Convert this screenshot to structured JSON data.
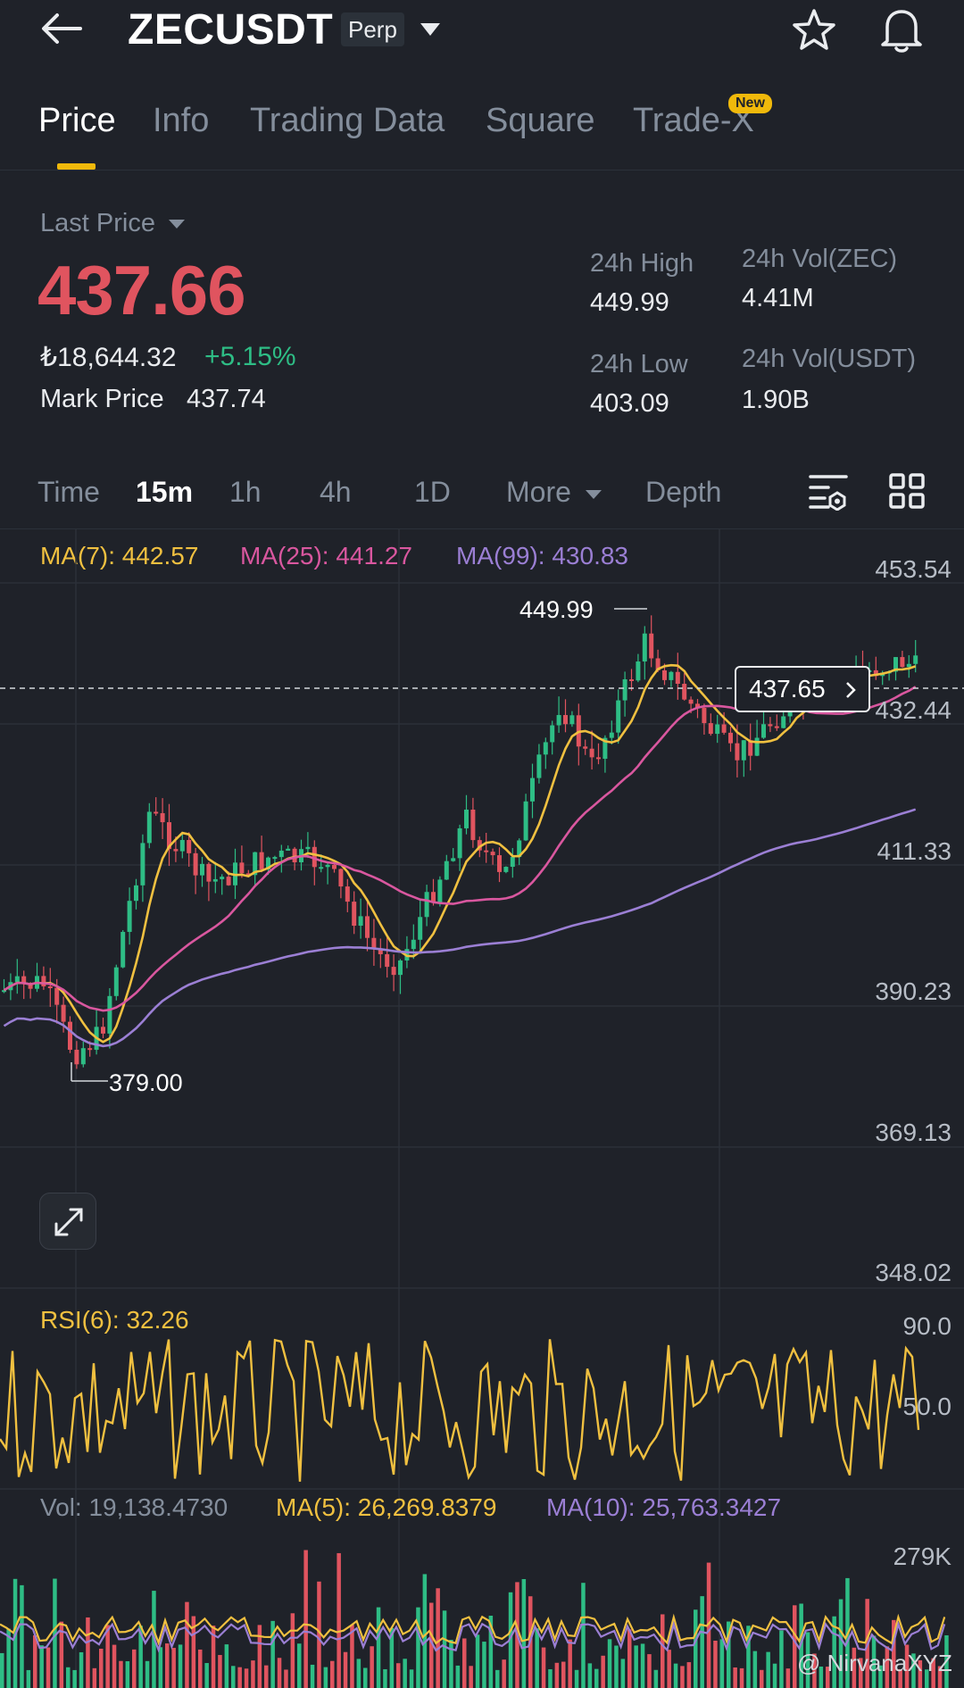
{
  "header": {
    "symbol": "ZECUSDT",
    "contract_type": "Perp",
    "icons": [
      "back-arrow-icon",
      "dropdown-caret-icon",
      "star-icon",
      "bell-icon"
    ]
  },
  "tabs": [
    {
      "label": "Price",
      "active": true
    },
    {
      "label": "Info",
      "active": false
    },
    {
      "label": "Trading Data",
      "active": false
    },
    {
      "label": "Square",
      "active": false
    },
    {
      "label": "Trade-X",
      "active": false,
      "badge": "New"
    }
  ],
  "price": {
    "last_price_label": "Last Price",
    "last_price": "437.66",
    "fiat_price": "₺18,644.32",
    "change_pct": "+5.15%",
    "mark_price_label": "Mark Price",
    "mark_price": "437.74"
  },
  "stats": {
    "high_label": "24h High",
    "high_value": "449.99",
    "low_label": "24h Low",
    "low_value": "403.09",
    "vol_base_label": "24h Vol(ZEC)",
    "vol_base_value": "4.41M",
    "vol_quote_label": "24h Vol(USDT)",
    "vol_quote_value": "1.90B"
  },
  "timeframes": {
    "items": [
      "Time",
      "15m",
      "1h",
      "4h",
      "1D"
    ],
    "active": "15m",
    "more_label": "More",
    "depth_label": "Depth"
  },
  "ma_legend": {
    "ma7": "MA(7): 442.57",
    "ma25": "MA(25): 441.27",
    "ma99": "MA(99): 430.83"
  },
  "price_axis": [
    "453.54",
    "432.44",
    "411.33",
    "390.23",
    "369.13",
    "348.02"
  ],
  "annotations": {
    "high_marker": "449.99",
    "low_marker": "379.00",
    "current_tag": "437.65"
  },
  "rsi": {
    "label": "RSI(6): 32.26",
    "axis": [
      "90.0",
      "50.0"
    ]
  },
  "volume": {
    "vol_label": "Vol: 19,138.4730",
    "ma5_label": "MA(5): 26,269.8379",
    "ma10_label": "MA(10): 25,763.3427",
    "axis_top": "279K"
  },
  "watermark": "@ NirvanaXYZ",
  "colors": {
    "up": "#2ebd85",
    "down": "#e0545f",
    "ma7": "#f0c040",
    "ma25": "#d9579f",
    "ma99": "#9b7fd4",
    "accent": "#f0b90b"
  }
}
